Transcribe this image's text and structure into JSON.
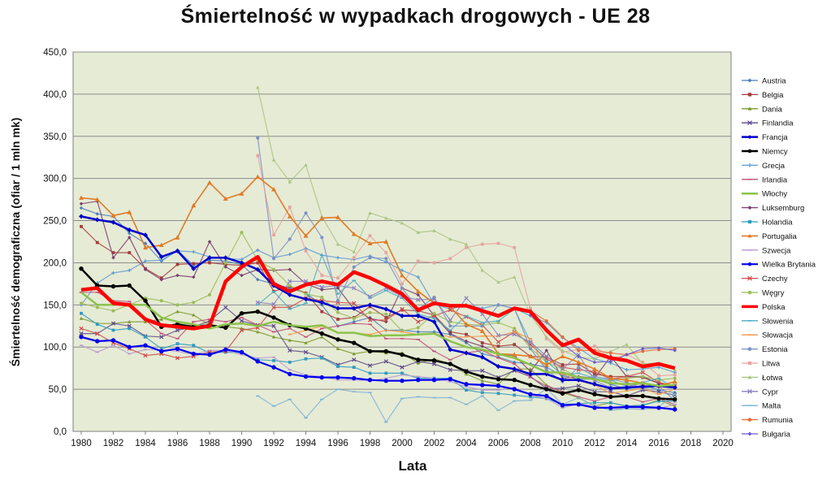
{
  "chart_data": {
    "type": "line",
    "title": "Śmiertelność  w wypadkach drogowych - UE 28",
    "xlabel": "Lata",
    "ylabel": "Śmiertelność demograficzna  (ofiar / 1 mln mk)",
    "xlim": [
      1980,
      2020
    ],
    "ylim": [
      0,
      450
    ],
    "x_ticks": [
      "1980",
      "1982",
      "1984",
      "1986",
      "1988",
      "1990",
      "1992",
      "1994",
      "1996",
      "1998",
      "2000",
      "2002",
      "2004",
      "2006",
      "2008",
      "2010",
      "2012",
      "2014",
      "2016",
      "2018",
      "2020"
    ],
    "y_ticks": [
      "0,0",
      "50,0",
      "100,0",
      "150,0",
      "200,0",
      "250,0",
      "300,0",
      "350,0",
      "400,0",
      "450,0"
    ],
    "grid": "horizontal",
    "legend_position": "right",
    "series": [
      {
        "name": "Austria",
        "color": "#4a7ebb",
        "marker": "diamond",
        "start": 1980,
        "values": [
          265,
          258,
          255,
          235,
          223,
          202,
          215,
          197,
          203,
          202,
          198,
          180,
          175,
          170,
          164,
          150,
          125,
          130,
          135,
          120,
          120,
          118,
          118,
          115,
          105,
          92,
          88,
          82,
          80,
          76,
          66,
          62,
          62,
          56,
          50,
          55,
          49,
          46
        ]
      },
      {
        "name": "Belgia",
        "color": "#a33b3b",
        "marker": "square",
        "start": 1980,
        "values": [
          243,
          224,
          212,
          212,
          193,
          182,
          198,
          199,
          200,
          198,
          197,
          200,
          166,
          172,
          164,
          142,
          133,
          135,
          148,
          135,
          144,
          143,
          138,
          118,
          115,
          105,
          101,
          103,
          89,
          88,
          79,
          80,
          68,
          65,
          65,
          64,
          57,
          54
        ]
      },
      {
        "name": "Dania",
        "color": "#7b9a2c",
        "marker": "triangle",
        "start": 1980,
        "values": [
          134,
          128,
          128,
          130,
          130,
          133,
          142,
          138,
          126,
          124,
          122,
          118,
          112,
          108,
          105,
          112,
          98,
          92,
          95,
          93,
          93,
          81,
          86,
          80,
          68,
          60,
          56,
          74,
          74,
          55,
          46,
          40,
          30,
          34,
          30,
          31,
          37,
          30
        ]
      },
      {
        "name": "Finlandia",
        "color": "#5d4a8a",
        "marker": "x",
        "start": 1980,
        "values": [
          116,
          116,
          128,
          125,
          113,
          112,
          120,
          124,
          131,
          147,
          131,
          126,
          125,
          96,
          94,
          88,
          79,
          85,
          78,
          83,
          76,
          83,
          80,
          73,
          72,
          72,
          64,
          72,
          65,
          51,
          51,
          54,
          47,
          47,
          42,
          49,
          47,
          43
        ]
      },
      {
        "name": "Francja",
        "color": "#0000cc",
        "marker": "diamond",
        "start": 1980,
        "values": [
          255,
          251,
          248,
          239,
          233,
          207,
          214,
          193,
          206,
          206,
          200,
          192,
          173,
          162,
          157,
          153,
          146,
          146,
          150,
          145,
          137,
          137,
          130,
          97,
          93,
          88,
          77,
          74,
          68,
          68,
          61,
          61,
          56,
          51,
          52,
          53,
          54,
          52
        ],
        "bold": 2.5
      },
      {
        "name": "Niemcy",
        "color": "#000000",
        "marker": "circle",
        "start": 1980,
        "values": [
          193,
          173,
          172,
          173,
          155,
          124,
          127,
          124,
          126,
          123,
          140,
          142,
          135,
          126,
          122,
          116,
          109,
          105,
          95,
          95,
          91,
          85,
          84,
          80,
          71,
          65,
          62,
          61,
          55,
          50,
          45,
          49,
          44,
          41,
          42,
          42,
          39,
          38
        ],
        "bold": 2.5
      },
      {
        "name": "Grecja",
        "color": "#5c9bd5",
        "marker": "plus",
        "start": 1980,
        "values": [
          150,
          176,
          188,
          191,
          202,
          203,
          214,
          213,
          207,
          205,
          204,
          215,
          206,
          210,
          217,
          209,
          206,
          204,
          208,
          201,
          191,
          183,
          151,
          145,
          150,
          146,
          150,
          146,
          137,
          129,
          111,
          99,
          86,
          81,
          73,
          74,
          76,
          70
        ]
      },
      {
        "name": "Irlandia",
        "color": "#c0507a",
        "marker": "dash",
        "start": 1980,
        "values": [
          165,
          165,
          155,
          154,
          132,
          116,
          110,
          130,
          133,
          130,
          135,
          126,
          118,
          122,
          112,
          122,
          125,
          128,
          127,
          110,
          110,
          109,
          95,
          85,
          93,
          96,
          87,
          80,
          64,
          54,
          47,
          41,
          36,
          41,
          41,
          35,
          39,
          32
        ]
      },
      {
        "name": "Włochy",
        "color": "#8bc34a",
        "marker": "none",
        "start": 1980,
        "values": [
          165,
          150,
          150,
          150,
          150,
          135,
          130,
          127,
          122,
          127,
          128,
          125,
          130,
          126,
          124,
          126,
          117,
          117,
          113,
          114,
          114,
          115,
          116,
          107,
          100,
          97,
          92,
          87,
          79,
          70,
          70,
          64,
          62,
          57,
          56,
          57,
          54,
          55
        ],
        "bold": 2.5
      },
      {
        "name": "Luksemburg",
        "color": "#7a3c6e",
        "marker": "diamond",
        "start": 1980,
        "values": [
          270,
          273,
          206,
          230,
          192,
          180,
          185,
          183,
          225,
          195,
          185,
          192,
          191,
          192,
          175,
          168,
          170,
          145,
          134,
          130,
          170,
          162,
          137,
          116,
          107,
          101,
          92,
          90,
          71,
          96,
          63,
          65,
          63,
          89,
          65,
          65,
          57,
          54
        ]
      },
      {
        "name": "Holandia",
        "color": "#2e9bbf",
        "marker": "square",
        "start": 1980,
        "values": [
          140,
          127,
          120,
          122,
          112,
          98,
          104,
          102,
          93,
          94,
          93,
          85,
          84,
          82,
          86,
          87,
          77,
          76,
          69,
          69,
          69,
          63,
          63,
          63,
          49,
          46,
          45,
          43,
          41,
          39,
          32,
          33,
          34,
          34,
          30,
          31,
          36,
          36
        ]
      },
      {
        "name": "Portugalia",
        "color": "#e07b25",
        "marker": "triangle",
        "start": 1980,
        "values": [
          277,
          275,
          256,
          260,
          218,
          221,
          230,
          268,
          295,
          276,
          282,
          302,
          287,
          255,
          232,
          253,
          254,
          234,
          223,
          225,
          185,
          166,
          152,
          148,
          127,
          119,
          92,
          91,
          89,
          79,
          89,
          82,
          74,
          63,
          61,
          57,
          54,
          59
        ],
        "bold": 1.6
      },
      {
        "name": "Szwecja",
        "color": "#b89ad0",
        "marker": "dash",
        "start": 1980,
        "values": [
          102,
          94,
          102,
          92,
          97,
          97,
          95,
          91,
          96,
          96,
          91,
          87,
          88,
          73,
          67,
          65,
          61,
          61,
          60,
          63,
          67,
          65,
          63,
          59,
          53,
          49,
          49,
          52,
          43,
          39,
          28,
          33,
          30,
          27,
          27,
          27,
          27,
          32
        ]
      },
      {
        "name": "Wielka Brytania",
        "color": "#0000ee",
        "marker": "circle",
        "start": 1980,
        "values": [
          112,
          107,
          108,
          100,
          102,
          95,
          98,
          92,
          91,
          97,
          94,
          83,
          76,
          68,
          65,
          64,
          64,
          63,
          61,
          60,
          60,
          61,
          61,
          62,
          56,
          55,
          54,
          50,
          44,
          42,
          31,
          32,
          28,
          28,
          29,
          29,
          28,
          26
        ],
        "bold": 2.2
      },
      {
        "name": "Czechy",
        "color": "#cc4a4a",
        "marker": "x",
        "start": 1980,
        "values": [
          122,
          116,
          105,
          98,
          90,
          92,
          87,
          89,
          94,
          95,
          120,
          123,
          147,
          147,
          158,
          155,
          153,
          152,
          132,
          132,
          145,
          130,
          137,
          144,
          136,
          126,
          106,
          118,
          103,
          86,
          76,
          73,
          71,
          62,
          65,
          70,
          58,
          54
        ]
      },
      {
        "name": "Węgry",
        "color": "#9bbb59",
        "marker": "circle",
        "start": 1980,
        "values": [
          152,
          147,
          143,
          150,
          158,
          155,
          150,
          153,
          162,
          200,
          236,
          203,
          192,
          173,
          163,
          159,
          141,
          134,
          141,
          139,
          119,
          123,
          140,
          130,
          127,
          126,
          129,
          122,
          99,
          82,
          74,
          64,
          61,
          60,
          63,
          65,
          61,
          63
        ]
      },
      {
        "name": "Polska",
        "color": "#ff0000",
        "marker": "none",
        "start": 1980,
        "values": [
          168,
          170,
          152,
          150,
          133,
          126,
          124,
          122,
          125,
          178,
          195,
          207,
          175,
          166,
          174,
          178,
          174,
          189,
          182,
          173,
          163,
          144,
          152,
          149,
          149,
          143,
          137,
          146,
          142,
          120,
          102,
          109,
          93,
          87,
          84,
          77,
          80,
          75
        ],
        "bold": 4.5
      },
      {
        "name": "Słowenia",
        "color": "#4bacc6",
        "marker": "dash",
        "start": 1980,
        "values": [
          null,
          null,
          null,
          null,
          null,
          null,
          null,
          null,
          null,
          null,
          null,
          150,
          166,
          145,
          152,
          209,
          163,
          179,
          158,
          167,
          158,
          139,
          134,
          120,
          137,
          129,
          131,
          145,
          106,
          83,
          67,
          69,
          63,
          61,
          53,
          58,
          63,
          51
        ]
      },
      {
        "name": "Słowacja",
        "color": "#f79646",
        "marker": "dash",
        "start": 1980,
        "values": [
          null,
          null,
          null,
          null,
          null,
          null,
          null,
          null,
          null,
          null,
          null,
          null,
          null,
          115,
          120,
          125,
          117,
          117,
          115,
          120,
          118,
          115,
          116,
          112,
          112,
          113,
          113,
          118,
          110,
          71,
          68,
          60,
          55,
          45,
          48,
          51,
          44,
          50
        ]
      },
      {
        "name": "Estonia",
        "color": "#7b8fc4",
        "marker": "circle",
        "start": 1980,
        "values": [
          null,
          null,
          null,
          null,
          null,
          null,
          null,
          null,
          null,
          null,
          null,
          348,
          205,
          228,
          259,
          230,
          155,
          195,
          206,
          205,
          170,
          145,
          159,
          125,
          125,
          125,
          150,
          146,
          98,
          73,
          59,
          76,
          65,
          62,
          58,
          51,
          54,
          36
        ]
      },
      {
        "name": "Litwa",
        "color": "#e6a3a0",
        "marker": "square",
        "start": 1980,
        "values": [
          null,
          null,
          null,
          null,
          null,
          null,
          null,
          null,
          null,
          null,
          null,
          327,
          233,
          266,
          214,
          185,
          182,
          206,
          232,
          212,
          175,
          202,
          200,
          205,
          218,
          222,
          223,
          218,
          146,
          110,
          94,
          97,
          101,
          86,
          91,
          82,
          66,
          67
        ]
      },
      {
        "name": "Łotwa",
        "color": "#a9c47f",
        "marker": "triangle",
        "start": 1980,
        "values": [
          null,
          null,
          null,
          null,
          null,
          null,
          null,
          null,
          null,
          null,
          null,
          408,
          322,
          296,
          316,
          255,
          222,
          213,
          259,
          253,
          247,
          236,
          238,
          228,
          222,
          191,
          177,
          183,
          138,
          112,
          96,
          88,
          86,
          95,
          103,
          80,
          81,
          73
        ]
      },
      {
        "name": "Cypr",
        "color": "#8a7fbf",
        "marker": "x",
        "start": 1980,
        "values": [
          null,
          null,
          null,
          null,
          null,
          null,
          null,
          null,
          null,
          null,
          null,
          153,
          151,
          178,
          178,
          171,
          173,
          170,
          160,
          170,
          160,
          156,
          157,
          132,
          158,
          139,
          114,
          115,
          106,
          89,
          74,
          91,
          60,
          52,
          53,
          57,
          54,
          53
        ]
      },
      {
        "name": "Malta",
        "color": "#7fb3d5",
        "marker": "dash",
        "start": 1980,
        "values": [
          null,
          null,
          null,
          null,
          null,
          null,
          null,
          null,
          null,
          null,
          null,
          42,
          30,
          38,
          16,
          38,
          50,
          47,
          46,
          11,
          39,
          41,
          40,
          40,
          32,
          42,
          25,
          36,
          37,
          51,
          32,
          40,
          30,
          25,
          27,
          26,
          29,
          44
        ]
      },
      {
        "name": "Rumunia",
        "color": "#e86a3c",
        "marker": "circle",
        "start": 1980,
        "values": [
          null,
          null,
          null,
          null,
          null,
          null,
          null,
          null,
          null,
          null,
          null,
          null,
          null,
          null,
          null,
          null,
          null,
          null,
          null,
          null,
          null,
          null,
          null,
          null,
          null,
          null,
          null,
          null,
          143,
          131,
          112,
          96,
          96,
          93,
          91,
          95,
          97,
          98
        ]
      },
      {
        "name": "Bułgaria",
        "color": "#6a5acd",
        "marker": "diamond",
        "start": 1980,
        "values": [
          null,
          null,
          null,
          null,
          null,
          null,
          null,
          null,
          null,
          null,
          null,
          null,
          null,
          null,
          null,
          null,
          null,
          null,
          null,
          null,
          null,
          null,
          null,
          null,
          null,
          null,
          null,
          null,
          138,
          119,
          104,
          89,
          82,
          83,
          91,
          98,
          99,
          96
        ]
      }
    ]
  }
}
